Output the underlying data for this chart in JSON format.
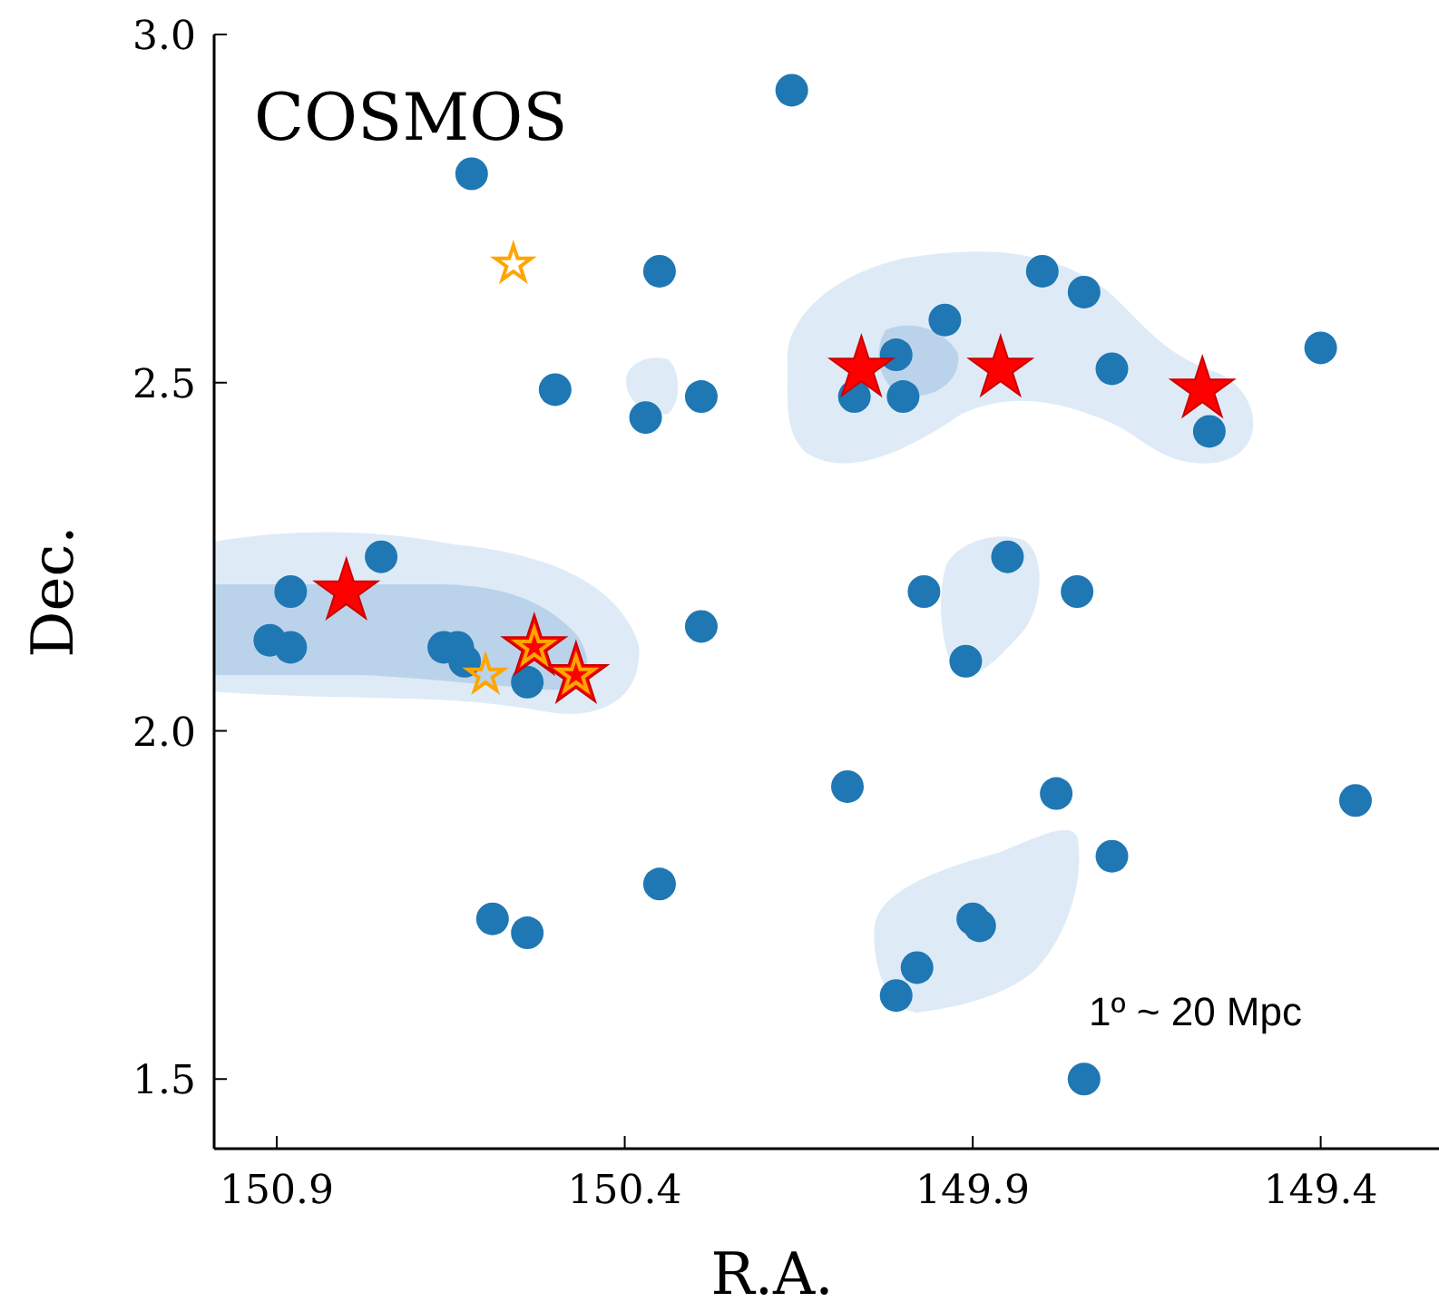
{
  "chart_data": {
    "type": "scatter",
    "xlabel": "R.A.",
    "ylabel": "Dec.",
    "xlim": [
      150.99,
      149.23
    ],
    "ylim": [
      1.4,
      3.0
    ],
    "xticks": [
      150.9,
      150.4,
      149.9,
      149.4
    ],
    "yticks": [
      1.5,
      {
        "value": 2,
        "label": "2.0"
      },
      2.5,
      {
        "value": 3,
        "label": "3.0"
      }
    ],
    "grid": false,
    "annotations": [
      "COSMOS",
      "1º ~ 20 Mpc"
    ],
    "series": [
      {
        "color": "#1f77b4",
        "marker": "circle",
        "x": [
          150.16,
          150.62,
          150.35,
          150.5,
          150.37,
          150.29,
          149.8,
          149.74,
          149.94,
          150.01,
          150.0,
          150.07,
          149.7,
          149.56,
          149.4,
          150.75,
          150.88,
          150.91,
          150.88,
          150.66,
          150.64,
          150.63,
          150.54,
          150.29,
          149.97,
          149.85,
          149.75,
          149.91,
          150.08,
          149.78,
          149.7,
          149.35,
          150.35,
          150.59,
          150.54,
          149.9,
          149.89,
          149.98,
          150.01,
          149.74
        ],
        "values": [
          2.92,
          2.8,
          2.66,
          2.49,
          2.45,
          2.48,
          2.66,
          2.63,
          2.59,
          2.54,
          2.48,
          2.48,
          2.52,
          2.43,
          2.55,
          2.25,
          2.2,
          2.13,
          2.12,
          2.12,
          2.12,
          2.1,
          2.07,
          2.15,
          2.2,
          2.25,
          2.2,
          2.1,
          1.92,
          1.91,
          1.82,
          1.9,
          1.78,
          1.73,
          1.71,
          1.73,
          1.72,
          1.66,
          1.62,
          1.5
        ]
      },
      {
        "color": "#ff0000",
        "marker": "star",
        "x": [
          150.8,
          150.06,
          149.86,
          149.57,
          150.53,
          150.47
        ],
        "values": [
          2.2,
          2.52,
          2.52,
          2.49,
          2.12,
          2.08
        ]
      },
      {
        "color": "#ffa500",
        "marker": "star",
        "x": [
          150.56,
          150.6,
          150.53,
          150.47
        ],
        "values": [
          2.67,
          2.08,
          2.12,
          2.08
        ]
      }
    ]
  }
}
